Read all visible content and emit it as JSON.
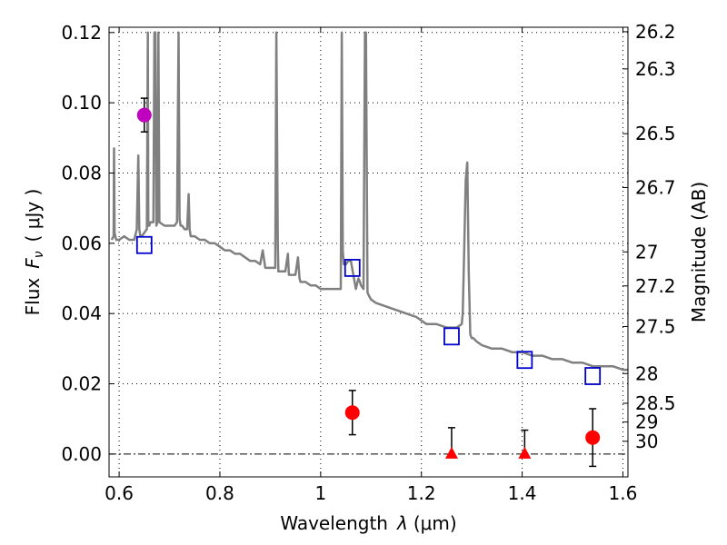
{
  "chart_data": {
    "type": "scatter",
    "title": "",
    "xlabel_text": "Wavelength",
    "xlabel_var": "λ",
    "xlabel_unit": "(μm)",
    "ylabel_text": "Flux",
    "ylabel_var": "F",
    "ylabel_sub": "ν",
    "ylabel_unit": "( μJy )",
    "y2label": "Magnitude (AB)",
    "xlim": [
      0.58,
      1.61
    ],
    "ylim": [
      -0.0065,
      0.1215
    ],
    "grid": true,
    "x_ticks": [
      0.6,
      0.8,
      1.0,
      1.2,
      1.4,
      1.6
    ],
    "x_tick_labels": [
      "0.6",
      "0.8",
      "1",
      "1.2",
      "1.4",
      "1.6"
    ],
    "y_ticks": [
      0.0,
      0.02,
      0.04,
      0.06,
      0.08,
      0.1,
      0.12
    ],
    "y_tick_labels": [
      "0.00",
      "0.02",
      "0.04",
      "0.06",
      "0.08",
      "0.10",
      "0.12"
    ],
    "y2_tick_labels": [
      "26.2",
      "26.3",
      "26.5",
      "26.7",
      "27",
      "27.2",
      "27.5",
      "28",
      "28.5",
      "29",
      "30"
    ],
    "y2_tick_values": [
      26.2,
      26.3,
      26.5,
      26.7,
      27.0,
      27.2,
      27.5,
      28.0,
      28.5,
      29.0,
      30.0
    ],
    "colors": {
      "model": "#808080",
      "model_photometry": "#0000cc",
      "detection": "#ff0000",
      "upper_limit": "#ff0000",
      "optical_point": "#bf00bf",
      "error_bar": "#000000"
    },
    "series": [
      {
        "style": "line",
        "x": [
          0.585,
          0.589,
          0.59,
          0.591,
          0.594,
          0.6,
          0.61,
          0.62,
          0.63,
          0.635,
          0.638,
          0.64,
          0.642,
          0.645,
          0.65,
          0.655,
          0.657,
          0.658,
          0.66,
          0.662,
          0.665,
          0.668,
          0.67,
          0.672,
          0.674,
          0.676,
          0.678,
          0.68,
          0.69,
          0.7,
          0.71,
          0.715,
          0.718,
          0.72,
          0.722,
          0.725,
          0.73,
          0.735,
          0.738,
          0.74,
          0.742,
          0.745,
          0.75,
          0.76,
          0.77,
          0.78,
          0.79,
          0.8,
          0.81,
          0.82,
          0.83,
          0.84,
          0.85,
          0.86,
          0.87,
          0.88,
          0.885,
          0.89,
          0.895,
          0.9,
          0.91,
          0.912,
          0.915,
          0.916,
          0.918,
          0.92,
          0.93,
          0.935,
          0.937,
          0.94,
          0.95,
          0.955,
          0.958,
          0.96,
          0.97,
          0.98,
          0.99,
          1.0,
          1.01,
          1.02,
          1.03,
          1.04,
          1.042,
          1.044,
          1.046,
          1.048,
          1.05,
          1.055,
          1.06,
          1.07,
          1.075,
          1.078,
          1.08,
          1.085,
          1.088,
          1.09,
          1.093,
          1.096,
          1.1,
          1.11,
          1.13,
          1.15,
          1.17,
          1.19,
          1.2,
          1.21,
          1.23,
          1.25,
          1.27,
          1.28,
          1.282,
          1.285,
          1.288,
          1.291,
          1.294,
          1.297,
          1.3,
          1.303,
          1.31,
          1.32,
          1.34,
          1.36,
          1.38,
          1.4,
          1.42,
          1.44,
          1.46,
          1.48,
          1.5,
          1.52,
          1.54,
          1.56,
          1.58,
          1.6,
          1.61
        ],
        "y": [
          0.061,
          0.062,
          0.087,
          0.063,
          0.061,
          0.061,
          0.062,
          0.061,
          0.061,
          0.064,
          0.085,
          0.064,
          0.062,
          0.062,
          0.063,
          0.064,
          0.12,
          0.065,
          0.065,
          0.066,
          0.066,
          0.066,
          0.12,
          0.12,
          0.065,
          0.066,
          0.12,
          0.066,
          0.065,
          0.065,
          0.065,
          0.066,
          0.12,
          0.067,
          0.065,
          0.065,
          0.064,
          0.064,
          0.074,
          0.064,
          0.062,
          0.062,
          0.062,
          0.061,
          0.061,
          0.06,
          0.06,
          0.059,
          0.058,
          0.058,
          0.057,
          0.057,
          0.056,
          0.055,
          0.055,
          0.054,
          0.058,
          0.053,
          0.053,
          0.053,
          0.053,
          0.12,
          0.06,
          0.052,
          0.052,
          0.052,
          0.052,
          0.057,
          0.051,
          0.051,
          0.051,
          0.056,
          0.05,
          0.049,
          0.049,
          0.048,
          0.048,
          0.047,
          0.047,
          0.047,
          0.047,
          0.047,
          0.12,
          0.058,
          0.054,
          0.054,
          0.054,
          0.055,
          0.055,
          0.047,
          0.05,
          0.049,
          0.048,
          0.047,
          0.12,
          0.12,
          0.046,
          0.045,
          0.044,
          0.043,
          0.042,
          0.041,
          0.04,
          0.039,
          0.038,
          0.037,
          0.037,
          0.036,
          0.036,
          0.037,
          0.04,
          0.058,
          0.078,
          0.083,
          0.052,
          0.034,
          0.033,
          0.033,
          0.032,
          0.031,
          0.03,
          0.03,
          0.029,
          0.029,
          0.028,
          0.028,
          0.027,
          0.027,
          0.026,
          0.026,
          0.025,
          0.025,
          0.025,
          0.024,
          0.024
        ]
      },
      {
        "style": "open-square",
        "x": [
          0.65,
          1.063,
          1.26,
          1.405,
          1.54
        ],
        "y": [
          0.0595,
          0.053,
          0.0335,
          0.0268,
          0.0222
        ]
      },
      {
        "style": "filled-circle",
        "x": [
          1.063,
          1.54
        ],
        "y": [
          0.0118,
          0.0047
        ],
        "yerr_low": [
          0.0063,
          0.0082
        ],
        "yerr_high": [
          0.0063,
          0.0082
        ]
      },
      {
        "style": "triangle",
        "x": [
          1.26,
          1.405
        ],
        "y": [
          0.0,
          0.0
        ],
        "yerr_low": [
          0.0,
          0.0
        ],
        "yerr_high": [
          0.0075,
          0.0068
        ]
      },
      {
        "style": "filled-circle",
        "x": [
          0.65
        ],
        "y": [
          0.0965
        ],
        "yerr_low": [
          0.0048
        ],
        "yerr_high": [
          0.0048
        ]
      }
    ]
  }
}
